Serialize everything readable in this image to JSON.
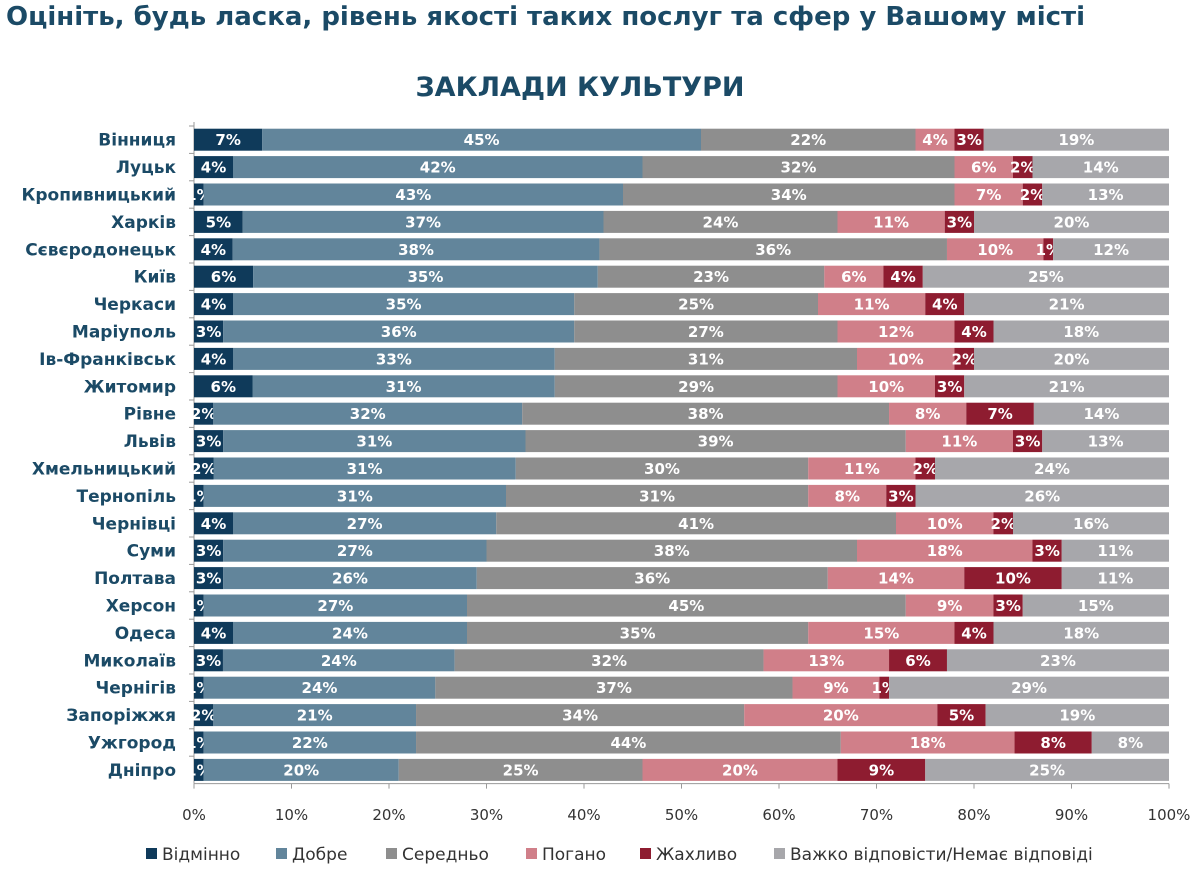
{
  "title": "Оцініть, будь ласка, рівень якості таких послуг та сфер у Вашому місті",
  "chart_data": {
    "type": "bar",
    "orientation": "horizontal",
    "stacked": "percent",
    "subtitle": "ЗАКЛАДИ КУЛЬТУРИ",
    "categories": [
      "Вінниця",
      "Луцьк",
      "Кропивницький",
      "Харків",
      "Сєвєродонецьк",
      "Київ",
      "Черкаси",
      "Маріуполь",
      "Ів-Франківськ",
      "Житомир",
      "Рівне",
      "Львів",
      "Хмельницький",
      "Тернопіль",
      "Чернівці",
      "Суми",
      "Полтава",
      "Херсон",
      "Одеса",
      "Миколаїв",
      "Чернігів",
      "Запоріжжя",
      "Ужгород",
      "Дніпро"
    ],
    "series": [
      {
        "name": "Відмінно",
        "color": "#0f3a5a",
        "values": [
          7,
          4,
          1,
          5,
          4,
          6,
          4,
          3,
          4,
          6,
          2,
          3,
          2,
          1,
          4,
          3,
          3,
          1,
          4,
          3,
          1,
          2,
          1,
          1
        ]
      },
      {
        "name": "Добре",
        "color": "#62859b",
        "values": [
          45,
          42,
          43,
          37,
          38,
          35,
          35,
          36,
          33,
          31,
          32,
          31,
          31,
          31,
          27,
          27,
          26,
          27,
          24,
          24,
          24,
          21,
          22,
          20
        ]
      },
      {
        "name": "Середньо",
        "color": "#8e8e8e",
        "values": [
          22,
          32,
          34,
          24,
          36,
          23,
          25,
          27,
          31,
          29,
          38,
          39,
          30,
          31,
          41,
          38,
          36,
          45,
          35,
          32,
          37,
          34,
          44,
          25
        ]
      },
      {
        "name": "Погано",
        "color": "#d07f89",
        "values": [
          4,
          6,
          7,
          11,
          10,
          6,
          11,
          12,
          10,
          10,
          8,
          11,
          11,
          8,
          10,
          18,
          14,
          9,
          15,
          13,
          9,
          20,
          18,
          20
        ]
      },
      {
        "name": "Жахливо",
        "color": "#8e1c30",
        "values": [
          3,
          2,
          2,
          3,
          1,
          4,
          4,
          4,
          2,
          3,
          7,
          3,
          2,
          3,
          2,
          3,
          10,
          3,
          4,
          6,
          1,
          5,
          8,
          9
        ]
      },
      {
        "name": "Важко відповісти/Немає відповіді",
        "color": "#a7a7ab",
        "values": [
          19,
          14,
          13,
          20,
          12,
          25,
          21,
          18,
          20,
          21,
          14,
          13,
          24,
          26,
          16,
          11,
          11,
          15,
          18,
          23,
          29,
          19,
          8,
          25
        ]
      }
    ],
    "xticks": [
      "0%",
      "10%",
      "20%",
      "30%",
      "40%",
      "50%",
      "60%",
      "70%",
      "80%",
      "90%",
      "100%"
    ],
    "xlim": [
      0,
      100
    ],
    "legend": "bottom"
  }
}
